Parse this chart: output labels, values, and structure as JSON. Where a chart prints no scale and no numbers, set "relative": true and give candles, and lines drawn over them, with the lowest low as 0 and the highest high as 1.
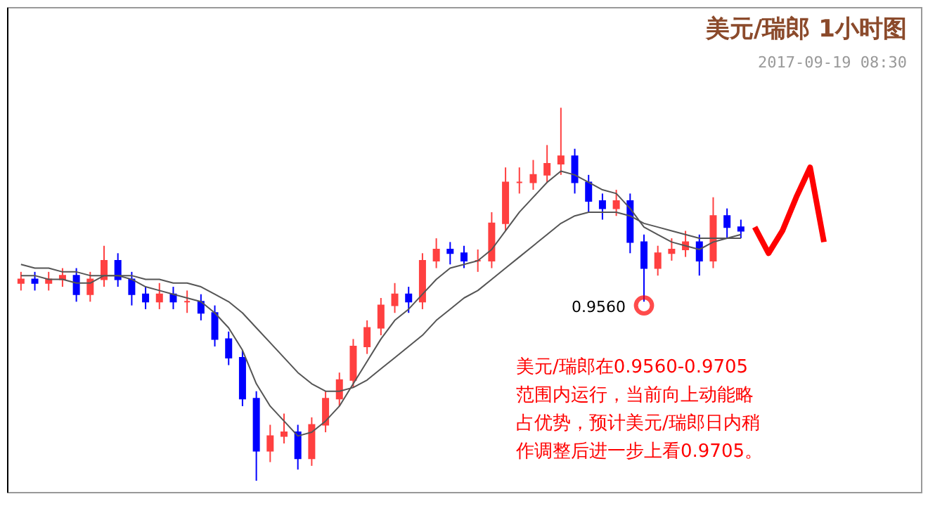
{
  "chart_data": {
    "type": "candlestick",
    "relative": true,
    "title": "美元/瑞郎 1小时图",
    "subtitle": "2017-09-19 08:30",
    "categories": [
      null,
      null,
      null,
      null,
      null,
      null,
      null,
      null,
      null,
      null,
      null,
      null,
      null,
      null,
      null,
      null,
      null,
      null,
      null,
      null,
      null,
      null,
      null,
      null,
      null,
      null,
      null,
      null,
      null,
      null,
      null,
      null,
      null,
      null,
      null,
      null,
      null,
      null,
      null,
      null,
      null,
      null,
      null,
      null,
      null,
      null,
      null,
      null,
      null,
      null,
      null,
      null,
      null,
      null,
      null,
      null,
      null,
      null,
      null,
      null,
      null,
      null,
      null,
      null,
      null
    ],
    "ohlc": [
      [
        0.53,
        0.56,
        0.51,
        0.54
      ],
      [
        0.54,
        0.56,
        0.51,
        0.53
      ],
      [
        0.53,
        0.56,
        0.51,
        0.54
      ],
      [
        0.54,
        0.57,
        0.52,
        0.55
      ],
      [
        0.55,
        0.57,
        0.48,
        0.5
      ],
      [
        0.5,
        0.56,
        0.48,
        0.54
      ],
      [
        0.54,
        0.63,
        0.52,
        0.59
      ],
      [
        0.59,
        0.61,
        0.52,
        0.54
      ],
      [
        0.54,
        0.56,
        0.47,
        0.5
      ],
      [
        0.5,
        0.52,
        0.46,
        0.48
      ],
      [
        0.48,
        0.53,
        0.46,
        0.5
      ],
      [
        0.5,
        0.52,
        0.46,
        0.48
      ],
      [
        0.48,
        0.51,
        0.45,
        0.48
      ],
      [
        0.48,
        0.5,
        0.43,
        0.45
      ],
      [
        0.45,
        0.47,
        0.36,
        0.38
      ],
      [
        0.38,
        0.4,
        0.31,
        0.33
      ],
      [
        0.33,
        0.35,
        0.2,
        0.22
      ],
      [
        0.22,
        0.24,
        0.0,
        0.08
      ],
      [
        0.08,
        0.15,
        0.05,
        0.12
      ],
      [
        0.12,
        0.18,
        0.1,
        0.13
      ],
      [
        0.13,
        0.15,
        0.03,
        0.06
      ],
      [
        0.06,
        0.17,
        0.04,
        0.15
      ],
      [
        0.15,
        0.24,
        0.13,
        0.22
      ],
      [
        0.22,
        0.29,
        0.2,
        0.27
      ],
      [
        0.27,
        0.38,
        0.25,
        0.36
      ],
      [
        0.36,
        0.43,
        0.34,
        0.41
      ],
      [
        0.41,
        0.49,
        0.39,
        0.47
      ],
      [
        0.47,
        0.53,
        0.45,
        0.5
      ],
      [
        0.5,
        0.52,
        0.45,
        0.48
      ],
      [
        0.48,
        0.61,
        0.46,
        0.59
      ],
      [
        0.59,
        0.65,
        0.57,
        0.62
      ],
      [
        0.62,
        0.64,
        0.58,
        0.61
      ],
      [
        0.61,
        0.63,
        0.57,
        0.59
      ],
      [
        0.59,
        0.62,
        0.56,
        0.59
      ],
      [
        0.59,
        0.72,
        0.57,
        0.69
      ],
      [
        0.69,
        0.84,
        0.67,
        0.8
      ],
      [
        0.8,
        0.84,
        0.77,
        0.8
      ],
      [
        0.8,
        0.86,
        0.78,
        0.82
      ],
      [
        0.82,
        0.9,
        0.8,
        0.85
      ],
      [
        0.85,
        1.0,
        0.82,
        0.87
      ],
      [
        0.87,
        0.89,
        0.77,
        0.8
      ],
      [
        0.8,
        0.82,
        0.72,
        0.75
      ],
      [
        0.75,
        0.77,
        0.7,
        0.73
      ],
      [
        0.73,
        0.78,
        0.71,
        0.75
      ],
      [
        0.75,
        0.77,
        0.61,
        0.64
      ],
      [
        0.64,
        0.66,
        0.48,
        0.57
      ],
      [
        0.57,
        0.63,
        0.55,
        0.61
      ],
      [
        0.61,
        0.65,
        0.59,
        0.62
      ],
      [
        0.62,
        0.67,
        0.6,
        0.64
      ],
      [
        0.64,
        0.66,
        0.55,
        0.59
      ],
      [
        0.59,
        0.76,
        0.57,
        0.71
      ],
      [
        0.71,
        0.73,
        0.65,
        0.68
      ],
      [
        0.68,
        0.7,
        0.65,
        0.67
      ],
      null,
      null,
      null,
      null,
      null,
      null,
      null,
      null,
      null,
      null,
      null,
      null
    ],
    "colors": [
      "#ff4040",
      "#0000ff",
      "#ff4040",
      "#ff4040",
      "#0000ff",
      "#ff4040",
      "#ff4040",
      "#0000ff",
      "#0000ff",
      "#0000ff",
      "#ff4040",
      "#0000ff",
      "#ff4040",
      "#0000ff",
      "#0000ff",
      "#0000ff",
      "#0000ff",
      "#0000ff",
      "#ff4040",
      "#ff4040",
      "#0000ff",
      "#ff4040",
      "#ff4040",
      "#ff4040",
      "#ff4040",
      "#ff4040",
      "#ff4040",
      "#ff4040",
      "#0000ff",
      "#ff4040",
      "#ff4040",
      "#0000ff",
      "#0000ff",
      "#ff4040",
      "#ff4040",
      "#ff4040",
      "#ff4040",
      "#ff4040",
      "#ff4040",
      "#ff4040",
      "#0000ff",
      "#0000ff",
      "#0000ff",
      "#ff4040",
      "#0000ff",
      "#0000ff",
      "#ff4040",
      "#ff4040",
      "#ff4040",
      "#0000ff",
      "#ff4040",
      "#0000ff",
      "#0000ff",
      null,
      null,
      null,
      null,
      null,
      null,
      null,
      null,
      null,
      null,
      null,
      null
    ],
    "series": [
      {
        "type": "line",
        "color": "#555555",
        "values": [
          0.55,
          0.55,
          0.54,
          0.54,
          0.53,
          0.53,
          0.55,
          0.55,
          0.54,
          0.52,
          0.51,
          0.5,
          0.49,
          0.48,
          0.45,
          0.41,
          0.35,
          0.26,
          0.2,
          0.16,
          0.12,
          0.13,
          0.16,
          0.2,
          0.26,
          0.32,
          0.38,
          0.43,
          0.46,
          0.5,
          0.54,
          0.57,
          0.58,
          0.59,
          0.62,
          0.67,
          0.72,
          0.76,
          0.8,
          0.83,
          0.82,
          0.8,
          0.78,
          0.77,
          0.73,
          0.68,
          0.66,
          0.64,
          0.63,
          0.62,
          0.64,
          0.65,
          0.66,
          null,
          null,
          null,
          null,
          null,
          null,
          null,
          null,
          null,
          null,
          null,
          null
        ]
      },
      {
        "type": "line",
        "color": "#555555",
        "values": [
          0.58,
          0.57,
          0.57,
          0.56,
          0.56,
          0.55,
          0.55,
          0.55,
          0.55,
          0.54,
          0.54,
          0.53,
          0.53,
          0.52,
          0.5,
          0.48,
          0.45,
          0.41,
          0.37,
          0.33,
          0.29,
          0.26,
          0.24,
          0.24,
          0.25,
          0.27,
          0.3,
          0.33,
          0.36,
          0.39,
          0.43,
          0.46,
          0.49,
          0.51,
          0.54,
          0.57,
          0.6,
          0.63,
          0.66,
          0.69,
          0.71,
          0.72,
          0.72,
          0.72,
          0.71,
          0.69,
          0.68,
          0.67,
          0.66,
          0.65,
          0.65,
          0.65,
          0.65,
          null,
          null,
          null,
          null,
          null,
          null,
          null,
          null,
          null,
          null,
          null,
          null
        ]
      },
      {
        "type": "scatter",
        "color": "#ff0000",
        "marker": "circle",
        "values": [
          null,
          null,
          null,
          null,
          null,
          null,
          null,
          null,
          null,
          null,
          null,
          null,
          null,
          null,
          null,
          null,
          null,
          null,
          null,
          null,
          null,
          null,
          null,
          null,
          null,
          null,
          null,
          null,
          null,
          null,
          null,
          null,
          null,
          null,
          null,
          null,
          null,
          null,
          null,
          null,
          null,
          null,
          null,
          null,
          null,
          0.47,
          null,
          null,
          null,
          null,
          null,
          null,
          null,
          null,
          null,
          null,
          null,
          null,
          null,
          null,
          null,
          null,
          null,
          null,
          null
        ]
      },
      {
        "type": "line",
        "color": "#ff0000",
        "values": [
          null,
          null,
          null,
          null,
          null,
          null,
          null,
          null,
          null,
          null,
          null,
          null,
          null,
          null,
          null,
          null,
          null,
          null,
          null,
          null,
          null,
          null,
          null,
          null,
          null,
          null,
          null,
          null,
          null,
          null,
          null,
          null,
          null,
          null,
          null,
          null,
          null,
          null,
          null,
          null,
          null,
          null,
          null,
          null,
          null,
          null,
          null,
          null,
          null,
          null,
          null,
          null,
          null,
          0.68,
          0.61,
          0.67,
          0.76,
          0.84,
          0.64,
          null,
          null,
          null,
          null,
          null,
          null
        ]
      }
    ],
    "annotations": [
      "0.9560",
      "美元/瑞郎在0.9560-0.9705范围内运行，当前向上动能略占优势，预计美元/瑞郎日内稍作调整后进一步上看0.9705。"
    ]
  }
}
